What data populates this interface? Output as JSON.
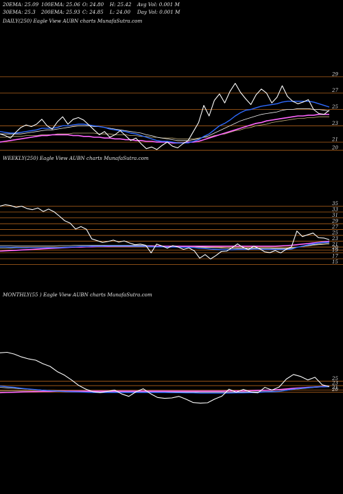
{
  "header": {
    "row1": [
      {
        "key": "ema20",
        "text": "20EMA: 25.09"
      },
      {
        "key": "ema100",
        "text": "100EMA: 25.06"
      },
      {
        "key": "open",
        "text": "O: 24.80"
      },
      {
        "key": "high",
        "text": "H: 25.42"
      },
      {
        "key": "avgvol",
        "text": "Avg Vol: 0.001 M"
      }
    ],
    "row2": [
      {
        "key": "ema30",
        "text": "30EMA: 25.3"
      },
      {
        "key": "ema200",
        "text": "200EMA: 25.93"
      },
      {
        "key": "close",
        "text": "C: 24.85"
      },
      {
        "key": "low",
        "text": "L: 24.00"
      },
      {
        "key": "dayvol",
        "text": "Day Vol: 0.001 M"
      }
    ]
  },
  "panels": {
    "daily": {
      "label": "DAILY(250) Eagle  View  AUBN  charts MunafaSutra.com"
    },
    "weekly": {
      "label": "WEEKLY(250) Eagle  View  AUBN  charts MunafaSutra.com"
    },
    "monthly": {
      "label": "MONTHLY(55              ) Eagle  View  AUBN  charts MunafaSutra.com"
    }
  },
  "colors": {
    "background": "#000000",
    "price": "#ffffff",
    "ema_fast": "#2f6bff",
    "ema_mid": "#f2f2f2",
    "ema_slow": "#c8b27a",
    "ema_long": "#ff66ff",
    "hline": "#b5651d"
  },
  "chart_data": [
    {
      "type": "line",
      "name": "daily",
      "y_ticks": [
        29,
        27,
        25,
        23,
        21,
        20
      ],
      "ylim": [
        19.5,
        30
      ],
      "series": [
        {
          "role": "price",
          "values": [
            22,
            21.8,
            21.5,
            22.2,
            22.8,
            23.1,
            22.9,
            23.2,
            23.8,
            23.0,
            22.6,
            23.5,
            24.1,
            23.2,
            23.8,
            24.0,
            23.7,
            23.1,
            22.5,
            21.9,
            22.3,
            21.6,
            21.9,
            22.4,
            21.8,
            21.2,
            21.5,
            20.8,
            20.2,
            20.4,
            20.1,
            20.6,
            21.0,
            20.5,
            20.3,
            20.8,
            21.2,
            22.3,
            23.4,
            25.5,
            24.2,
            26.1,
            26.9,
            25.8,
            27.2,
            28.2,
            27.1,
            26.3,
            25.6,
            26.8,
            27.5,
            27.0,
            25.8,
            26.5,
            27.9,
            26.6,
            26.0,
            25.7,
            25.9,
            26.2,
            25.0,
            24.5,
            24.4,
            24.9
          ]
        },
        {
          "role": "ema20",
          "values": [
            22.3,
            22.2,
            22.1,
            22.1,
            22.2,
            22.3,
            22.4,
            22.5,
            22.7,
            22.7,
            22.7,
            22.8,
            23.0,
            23.0,
            23.1,
            23.2,
            23.2,
            23.1,
            23.0,
            22.9,
            22.8,
            22.6,
            22.5,
            22.4,
            22.3,
            22.1,
            22.0,
            21.8,
            21.6,
            21.4,
            21.2,
            21.1,
            21.1,
            21.0,
            20.9,
            20.9,
            20.9,
            21.1,
            21.3,
            21.7,
            22.0,
            22.5,
            23.0,
            23.3,
            23.7,
            24.2,
            24.6,
            24.9,
            25.0,
            25.2,
            25.4,
            25.5,
            25.6,
            25.7,
            25.9,
            26.0,
            26.0,
            26.0,
            26.0,
            26.0,
            25.9,
            25.7,
            25.5,
            25.3
          ]
        },
        {
          "role": "ema30",
          "values": [
            22.0,
            22.0,
            22.0,
            22.0,
            22.0,
            22.1,
            22.2,
            22.3,
            22.4,
            22.5,
            22.5,
            22.6,
            22.7,
            22.8,
            22.9,
            23.0,
            23.0,
            23.0,
            22.9,
            22.9,
            22.8,
            22.7,
            22.6,
            22.5,
            22.4,
            22.3,
            22.2,
            22.1,
            21.9,
            21.8,
            21.6,
            21.5,
            21.4,
            21.3,
            21.2,
            21.2,
            21.2,
            21.3,
            21.4,
            21.6,
            21.8,
            22.1,
            22.4,
            22.7,
            23.0,
            23.3,
            23.6,
            23.8,
            24.0,
            24.2,
            24.4,
            24.5,
            24.6,
            24.7,
            24.9,
            25.0,
            25.0,
            25.1,
            25.1,
            25.1,
            25.0,
            25.0,
            24.9,
            24.8
          ]
        },
        {
          "role": "ema100",
          "values": [
            21.6,
            21.6,
            21.7,
            21.7,
            21.7,
            21.8,
            21.8,
            21.8,
            21.9,
            21.9,
            21.9,
            22.0,
            22.0,
            22.0,
            22.1,
            22.1,
            22.1,
            22.1,
            22.1,
            22.0,
            22.0,
            22.0,
            21.9,
            21.9,
            21.9,
            21.8,
            21.8,
            21.7,
            21.7,
            21.6,
            21.6,
            21.5,
            21.5,
            21.5,
            21.4,
            21.4,
            21.4,
            21.4,
            21.5,
            21.6,
            21.6,
            21.8,
            21.9,
            22.0,
            22.2,
            22.4,
            22.5,
            22.7,
            22.8,
            23.0,
            23.1,
            23.2,
            23.4,
            23.5,
            23.6,
            23.7,
            23.8,
            23.9,
            23.9,
            24.0,
            24.0,
            24.1,
            24.1,
            24.1
          ]
        },
        {
          "role": "ema200",
          "values": [
            21.0,
            21.1,
            21.2,
            21.3,
            21.4,
            21.5,
            21.6,
            21.7,
            21.8,
            21.8,
            21.9,
            21.9,
            21.9,
            21.9,
            21.8,
            21.8,
            21.7,
            21.7,
            21.6,
            21.6,
            21.5,
            21.5,
            21.4,
            21.4,
            21.3,
            21.3,
            21.2,
            21.2,
            21.1,
            21.1,
            21.0,
            21.0,
            21.0,
            20.9,
            20.9,
            20.9,
            21.0,
            21.0,
            21.1,
            21.3,
            21.5,
            21.7,
            21.9,
            22.1,
            22.3,
            22.5,
            22.7,
            22.9,
            23.1,
            23.3,
            23.4,
            23.6,
            23.7,
            23.8,
            23.9,
            24.0,
            24.1,
            24.2,
            24.2,
            24.3,
            24.3,
            24.4,
            24.4,
            24.4
          ]
        }
      ]
    },
    {
      "type": "line",
      "name": "weekly",
      "y_ticks": [
        35,
        33,
        31,
        29,
        27,
        25,
        23,
        21,
        20,
        19,
        17,
        15
      ],
      "ylim": [
        13.5,
        37
      ],
      "series": [
        {
          "role": "price",
          "values": [
            35,
            35.5,
            35.2,
            34.6,
            35.0,
            34.2,
            33.8,
            34.4,
            33.2,
            34.0,
            33.1,
            31.6,
            30.0,
            29.2,
            27.2,
            28.0,
            27.1,
            23.8,
            23.2,
            22.6,
            22.9,
            23.4,
            22.7,
            23.1,
            22.4,
            21.8,
            22.0,
            21.6,
            19.0,
            22.0,
            21.4,
            20.6,
            21.5,
            21.0,
            20.2,
            20.7,
            19.7,
            17.2,
            18.4,
            16.9,
            18.1,
            19.5,
            19.6,
            20.8,
            22.1,
            20.9,
            20.1,
            21.3,
            20.5,
            19.4,
            19.1,
            19.8,
            19.0,
            20.2,
            21.1,
            26.5,
            24.6,
            25.2,
            25.8,
            24.2,
            24.1,
            23.5
          ]
        },
        {
          "role": "ema20",
          "values": [
            21.0,
            21.0,
            20.9,
            20.9,
            20.8,
            20.8,
            20.8,
            20.8,
            20.8,
            20.8,
            20.8,
            20.8,
            20.9,
            21.0,
            21.1,
            21.2,
            21.2,
            21.3,
            21.3,
            21.3,
            21.4,
            21.4,
            21.4,
            21.4,
            21.4,
            21.3,
            21.3,
            21.3,
            21.1,
            21.1,
            21.1,
            21.0,
            21.0,
            21.0,
            20.9,
            20.9,
            20.8,
            20.6,
            20.5,
            20.3,
            20.2,
            20.1,
            20.1,
            20.1,
            20.2,
            20.2,
            20.2,
            20.3,
            20.3,
            20.2,
            20.2,
            20.2,
            20.2,
            20.2,
            20.3,
            20.9,
            21.3,
            21.7,
            22.1,
            22.4,
            22.6,
            22.7
          ]
        },
        {
          "role": "ema30",
          "values": [
            21.5,
            21.5,
            21.5,
            21.4,
            21.4,
            21.4,
            21.4,
            21.4,
            21.4,
            21.4,
            21.4,
            21.5,
            21.5,
            21.5,
            21.6,
            21.6,
            21.6,
            21.6,
            21.6,
            21.6,
            21.6,
            21.6,
            21.6,
            21.6,
            21.6,
            21.6,
            21.6,
            21.5,
            21.5,
            21.4,
            21.4,
            21.4,
            21.3,
            21.3,
            21.3,
            21.2,
            21.2,
            21.1,
            21.0,
            20.9,
            20.8,
            20.7,
            20.7,
            20.6,
            20.6,
            20.6,
            20.6,
            20.6,
            20.6,
            20.6,
            20.6,
            20.5,
            20.5,
            20.5,
            20.6,
            20.9,
            21.2,
            21.5,
            21.8,
            22.0,
            22.2,
            22.4
          ]
        },
        {
          "role": "ema100",
          "values": [
            20.6,
            20.6,
            20.6,
            20.7,
            20.7,
            20.7,
            20.8,
            20.8,
            20.8,
            20.9,
            20.9,
            20.9,
            21.0,
            21.0,
            21.0,
            21.1,
            21.1,
            21.1,
            21.1,
            21.1,
            21.1,
            21.1,
            21.1,
            21.1,
            21.1,
            21.1,
            21.1,
            21.1,
            21.0,
            21.0,
            21.0,
            21.0,
            21.0,
            21.0,
            21.0,
            20.9,
            20.9,
            20.9,
            20.8,
            20.8,
            20.8,
            20.8,
            20.7,
            20.7,
            20.7,
            20.7,
            20.7,
            20.7,
            20.7,
            20.7,
            20.7,
            20.7,
            20.7,
            20.7,
            20.8,
            21.0,
            21.2,
            21.4,
            21.6,
            21.8,
            21.9,
            22.0
          ]
        },
        {
          "role": "ema200",
          "values": [
            19.6,
            19.7,
            19.8,
            19.9,
            20.0,
            20.1,
            20.2,
            20.3,
            20.4,
            20.5,
            20.6,
            20.7,
            20.8,
            20.9,
            21.0,
            21.0,
            21.1,
            21.1,
            21.2,
            21.2,
            21.2,
            21.3,
            21.3,
            21.3,
            21.3,
            21.3,
            21.3,
            21.3,
            21.3,
            21.3,
            21.3,
            21.3,
            21.3,
            21.3,
            21.3,
            21.3,
            21.3,
            21.3,
            21.3,
            21.3,
            21.3,
            21.3,
            21.3,
            21.3,
            21.3,
            21.3,
            21.3,
            21.3,
            21.3,
            21.3,
            21.3,
            21.3,
            21.4,
            21.5,
            21.6,
            21.8,
            22.0,
            22.2,
            22.4,
            22.6,
            22.8,
            23.0
          ]
        }
      ]
    },
    {
      "type": "line",
      "name": "monthly",
      "y_ticks": [
        25,
        23,
        21,
        20
      ],
      "ylim": [
        8,
        44
      ],
      "series": [
        {
          "role": "price",
          "values": [
            38,
            38.2,
            37.4,
            36.1,
            35.2,
            34.6,
            33.0,
            31.8,
            29.4,
            27.8,
            25.6,
            23.1,
            21.4,
            20.2,
            19.8,
            20.4,
            21.0,
            19.2,
            18.1,
            20.2,
            21.6,
            19.4,
            17.6,
            17.2,
            17.4,
            18.1,
            16.8,
            15.3,
            15.0,
            15.2,
            16.9,
            18.2,
            21.4,
            20.0,
            21.3,
            20.1,
            19.7,
            22.2,
            21.0,
            22.4,
            26.0,
            28.1,
            27.2,
            25.6,
            26.8,
            23.4,
            22.6
          ]
        },
        {
          "role": "ema20",
          "values": [
            22.8,
            22.5,
            22.2,
            21.8,
            21.5,
            21.2,
            20.9,
            20.7,
            20.5,
            20.3,
            20.2,
            20.1,
            20.0,
            19.9,
            19.9,
            19.9,
            19.9,
            19.9,
            19.9,
            19.9,
            19.9,
            19.9,
            19.9,
            19.9,
            19.8,
            19.8,
            19.7,
            19.7,
            19.6,
            19.6,
            19.6,
            19.6,
            19.6,
            19.7,
            19.7,
            19.8,
            19.9,
            20.1,
            20.2,
            20.4,
            20.9,
            21.4,
            21.8,
            22.1,
            22.4,
            22.5,
            22.6
          ]
        },
        {
          "role": "ema30",
          "values": [
            22.2,
            22.0,
            21.8,
            21.6,
            21.4,
            21.2,
            21.0,
            20.8,
            20.7,
            20.6,
            20.5,
            20.4,
            20.3,
            20.3,
            20.2,
            20.2,
            20.2,
            20.2,
            20.2,
            20.2,
            20.2,
            20.2,
            20.2,
            20.2,
            20.2,
            20.1,
            20.1,
            20.1,
            20.0,
            20.0,
            20.0,
            20.0,
            20.0,
            20.0,
            20.1,
            20.1,
            20.2,
            20.3,
            20.4,
            20.5,
            20.9,
            21.3,
            21.6,
            21.9,
            22.2,
            22.4,
            22.5
          ]
        },
        {
          "role": "ema100",
          "values": [
            20.6,
            20.6,
            20.6,
            20.6,
            20.6,
            20.6,
            20.6,
            20.6,
            20.6,
            20.6,
            20.6,
            20.6,
            20.6,
            20.6,
            20.6,
            20.6,
            20.6,
            20.6,
            20.6,
            20.6,
            20.6,
            20.6,
            20.6,
            20.6,
            20.6,
            20.6,
            20.6,
            20.6,
            20.6,
            20.6,
            20.6,
            20.6,
            20.6,
            20.6,
            20.6,
            20.6,
            20.7,
            20.8,
            20.9,
            21.0,
            21.3,
            21.6,
            21.9,
            22.1,
            22.3,
            22.5,
            22.6
          ]
        },
        {
          "role": "ema200",
          "values": [
            19.8,
            19.9,
            20.0,
            20.1,
            20.2,
            20.3,
            20.4,
            20.4,
            20.5,
            20.5,
            20.5,
            20.5,
            20.5,
            20.5,
            20.5,
            20.5,
            20.5,
            20.5,
            20.5,
            20.5,
            20.5,
            20.5,
            20.5,
            20.5,
            20.5,
            20.5,
            20.5,
            20.5,
            20.5,
            20.5,
            20.5,
            20.5,
            20.6,
            20.6,
            20.6,
            20.7,
            20.8,
            20.9,
            21.0,
            21.2,
            21.5,
            21.8,
            22.0,
            22.2,
            22.4,
            22.6,
            22.7
          ]
        }
      ]
    }
  ]
}
